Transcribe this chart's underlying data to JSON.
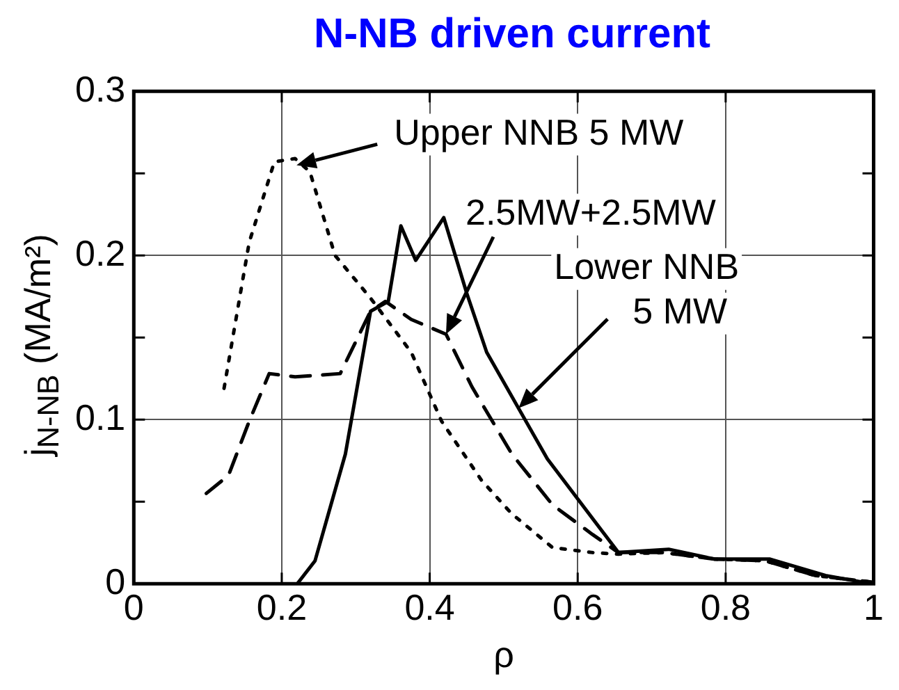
{
  "chart_data": {
    "type": "line",
    "title": "N-NB driven current",
    "xlabel": "ρ",
    "ylabel": "j$_{N-NB}$ (MA/m²)",
    "xlim": [
      0,
      1
    ],
    "xticks": [
      0,
      0.2,
      0.4,
      0.6,
      0.8,
      1
    ],
    "ylim": [
      0,
      0.3
    ],
    "yticks": [
      0,
      {
        "value": 0.05,
        "label": null
      },
      0.1,
      {
        "value": 0.15,
        "label": null
      },
      0.2,
      {
        "value": 0.25,
        "label": null
      },
      0.3
    ],
    "grid": true,
    "marker": "none",
    "series": [
      {
        "color": "#000000",
        "line_style": "dotted",
        "x": [
          0.122,
          0.156,
          0.19,
          0.218,
          0.238,
          0.272,
          0.32,
          0.375,
          0.416,
          0.47,
          0.51,
          0.566,
          0.62,
          0.655,
          0.716,
          0.785,
          0.853,
          0.921,
          0.997
        ],
        "values": [
          0.119,
          0.208,
          0.257,
          0.259,
          0.251,
          0.2,
          0.174,
          0.141,
          0.099,
          0.063,
          0.043,
          0.022,
          0.019,
          0.018,
          0.019,
          0.015,
          0.014,
          0.005,
          0.001
        ]
      },
      {
        "color": "#000000",
        "line_style": "dashed",
        "x": [
          0.098,
          0.128,
          0.156,
          0.183,
          0.218,
          0.279,
          0.32,
          0.34,
          0.375,
          0.422,
          0.457,
          0.511,
          0.566,
          0.62,
          0.655,
          0.716,
          0.785,
          0.853,
          0.921,
          0.997
        ],
        "values": [
          0.055,
          0.066,
          0.099,
          0.128,
          0.126,
          0.128,
          0.166,
          0.172,
          0.161,
          0.152,
          0.12,
          0.079,
          0.048,
          0.03,
          0.019,
          0.019,
          0.015,
          0.014,
          0.005,
          0.001
        ]
      },
      {
        "color": "#000000",
        "line_style": "solid",
        "x": [
          0.221,
          0.245,
          0.286,
          0.32,
          0.344,
          0.361,
          0.381,
          0.419,
          0.45,
          0.477,
          0.559,
          0.655,
          0.723,
          0.785,
          0.86,
          0.935,
          0.997
        ],
        "values": [
          0,
          0.014,
          0.079,
          0.166,
          0.172,
          0.218,
          0.197,
          0.223,
          0.177,
          0.141,
          0.076,
          0.019,
          0.021,
          0.015,
          0.015,
          0.005,
          0
        ]
      }
    ],
    "annotations": [
      {
        "text": "Upper NNB 5 MW",
        "x": 0.22,
        "y": 0.255
      },
      {
        "text": "2.5MW+2.5MW",
        "x": 0.422,
        "y": 0.152
      },
      {
        "text": "Lower NNB\n5 MW",
        "x": 0.52,
        "y": 0.107
      }
    ]
  }
}
